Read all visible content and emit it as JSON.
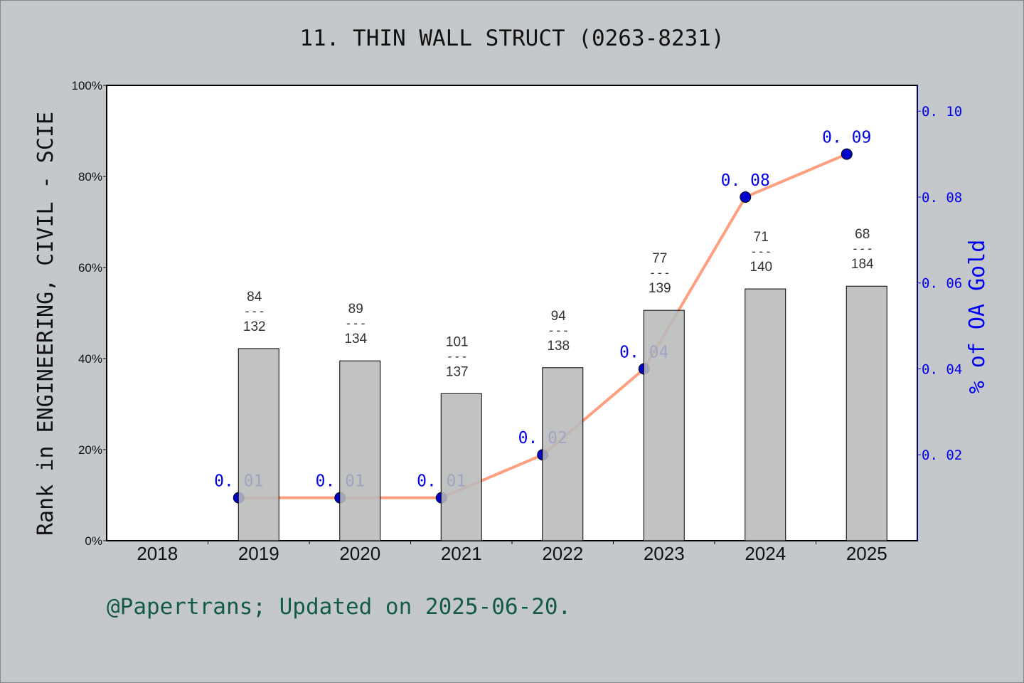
{
  "title": "11. THIN WALL STRUCT (0263-8231)",
  "footer": "@Papertrans; Updated on 2025-06-20.",
  "chart_data": {
    "type": "bar+line",
    "categories": [
      "2018",
      "2019",
      "2020",
      "2021",
      "2022",
      "2023",
      "2024",
      "2025"
    ],
    "left_axis": {
      "label": "Rank in ENGINEERING, CIVIL - SCIE",
      "ylim": [
        0,
        100
      ],
      "ticks": [
        "0%",
        "20%",
        "40%",
        "60%",
        "80%",
        "100%"
      ]
    },
    "right_axis": {
      "label": "% of OA Gold",
      "ylim": [
        0,
        0.106
      ],
      "ticks": [
        "0.02",
        "0.04",
        "0.06",
        "0.08",
        "0.10"
      ],
      "color": "#0000ee"
    },
    "bars": {
      "values": [
        null,
        42.2,
        39.5,
        32.3,
        38.0,
        50.6,
        55.3,
        55.9
      ],
      "rank_labels": [
        null,
        [
          "84",
          "132"
        ],
        [
          "89",
          "134"
        ],
        [
          "101",
          "137"
        ],
        [
          "94",
          "138"
        ],
        [
          "77",
          "139"
        ],
        [
          "71",
          "140"
        ],
        [
          "68",
          "184"
        ]
      ],
      "color": "#b8b9ba"
    },
    "line": {
      "values": [
        null,
        0.01,
        0.01,
        0.01,
        0.02,
        0.04,
        0.08,
        0.09
      ],
      "labels": [
        null,
        "0.01",
        "0.01",
        "0.01",
        "0.02",
        "0.04",
        "0.08",
        "0.09"
      ],
      "color": "#ff9f7f",
      "marker_color": "#0000cc"
    },
    "grid": false
  }
}
